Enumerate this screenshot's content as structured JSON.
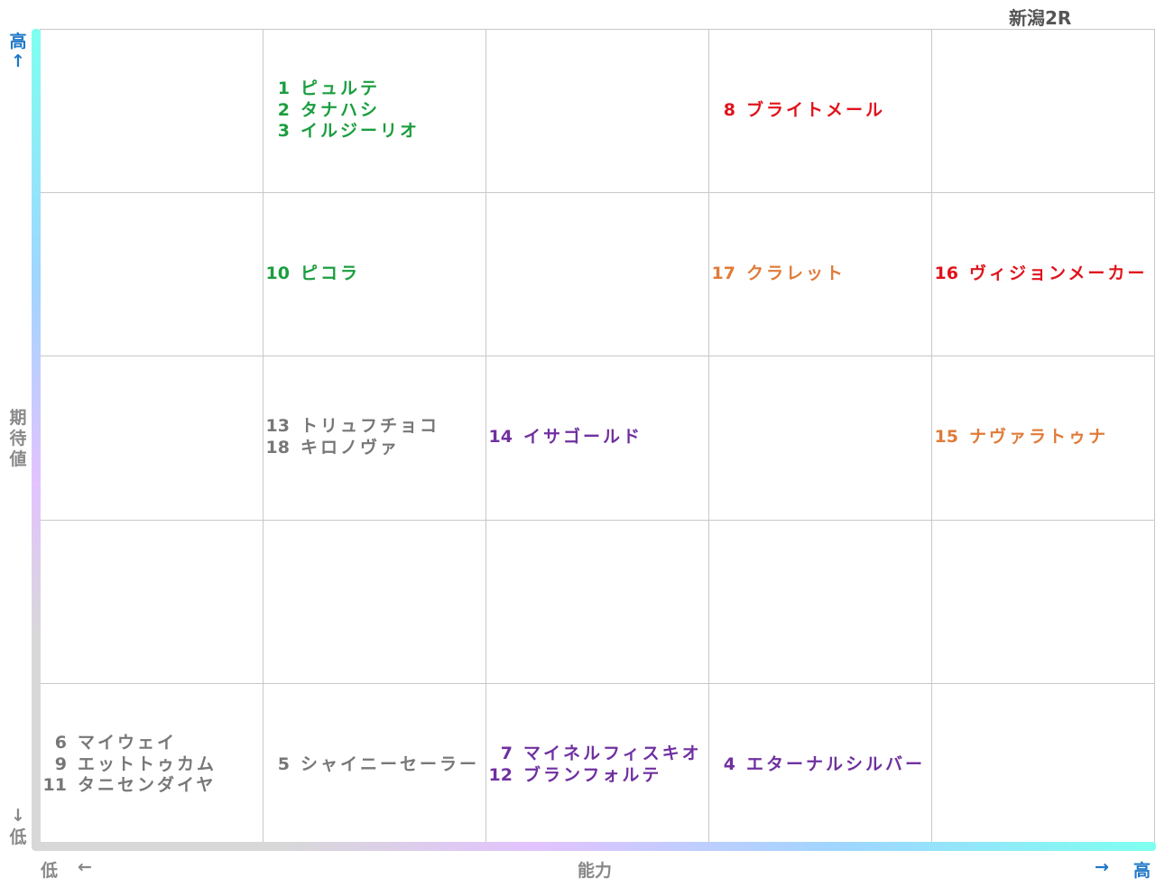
{
  "chart_data": {
    "type": "table",
    "title": "新潟2R",
    "y_axis": {
      "label": "期待値",
      "high": "高",
      "low": "低",
      "high_arrow": "↑",
      "low_arrow": "↓"
    },
    "x_axis": {
      "label": "能力",
      "low": "低",
      "high": "高",
      "low_arrow": "←",
      "high_arrow": "→"
    },
    "colors": {
      "green": "#1a9e3f",
      "red": "#e0131b",
      "orange": "#e07b39",
      "purple": "#7030a0",
      "gray": "#777777",
      "axis_blue": "#1f77c8",
      "axis_gray": "#888888"
    },
    "grid": {
      "columns": 5,
      "rows": 5
    },
    "cells": [
      {
        "row": 0,
        "col": 1,
        "color": "#1a9e3f",
        "entries": [
          {
            "num": "1",
            "name": "ピュルテ"
          },
          {
            "num": "2",
            "name": "タナハシ"
          },
          {
            "num": "3",
            "name": "イルジーリオ"
          }
        ]
      },
      {
        "row": 0,
        "col": 3,
        "color": "#e0131b",
        "entries": [
          {
            "num": "8",
            "name": "ブライトメール"
          }
        ]
      },
      {
        "row": 1,
        "col": 1,
        "color": "#1a9e3f",
        "entries": [
          {
            "num": "10",
            "name": "ピコラ"
          }
        ]
      },
      {
        "row": 1,
        "col": 3,
        "color": "#e07b39",
        "entries": [
          {
            "num": "17",
            "name": "クラレット"
          }
        ]
      },
      {
        "row": 1,
        "col": 4,
        "color": "#e0131b",
        "entries": [
          {
            "num": "16",
            "name": "ヴィジョンメーカー"
          }
        ]
      },
      {
        "row": 2,
        "col": 1,
        "color": "#777777",
        "entries": [
          {
            "num": "13",
            "name": "トリュフチョコ"
          },
          {
            "num": "18",
            "name": "キロノヴァ"
          }
        ]
      },
      {
        "row": 2,
        "col": 2,
        "color": "#7030a0",
        "entries": [
          {
            "num": "14",
            "name": "イサゴールド"
          }
        ]
      },
      {
        "row": 2,
        "col": 4,
        "color": "#e07b39",
        "entries": [
          {
            "num": "15",
            "name": "ナヴァラトゥナ"
          }
        ]
      },
      {
        "row": 4,
        "col": 0,
        "color": "#777777",
        "entries": [
          {
            "num": "6",
            "name": "マイウェイ"
          },
          {
            "num": "9",
            "name": "エットトゥカム"
          },
          {
            "num": "11",
            "name": "タニセンダイヤ"
          }
        ]
      },
      {
        "row": 4,
        "col": 1,
        "color": "#777777",
        "entries": [
          {
            "num": "5",
            "name": "シャイニーセーラー"
          }
        ]
      },
      {
        "row": 4,
        "col": 2,
        "color": "#7030a0",
        "entries": [
          {
            "num": "7",
            "name": "マイネルフィスキオ"
          },
          {
            "num": "12",
            "name": "ブランフォルテ"
          }
        ]
      },
      {
        "row": 4,
        "col": 3,
        "color": "#7030a0",
        "entries": [
          {
            "num": "4",
            "name": "エターナルシルバー"
          }
        ]
      }
    ]
  }
}
